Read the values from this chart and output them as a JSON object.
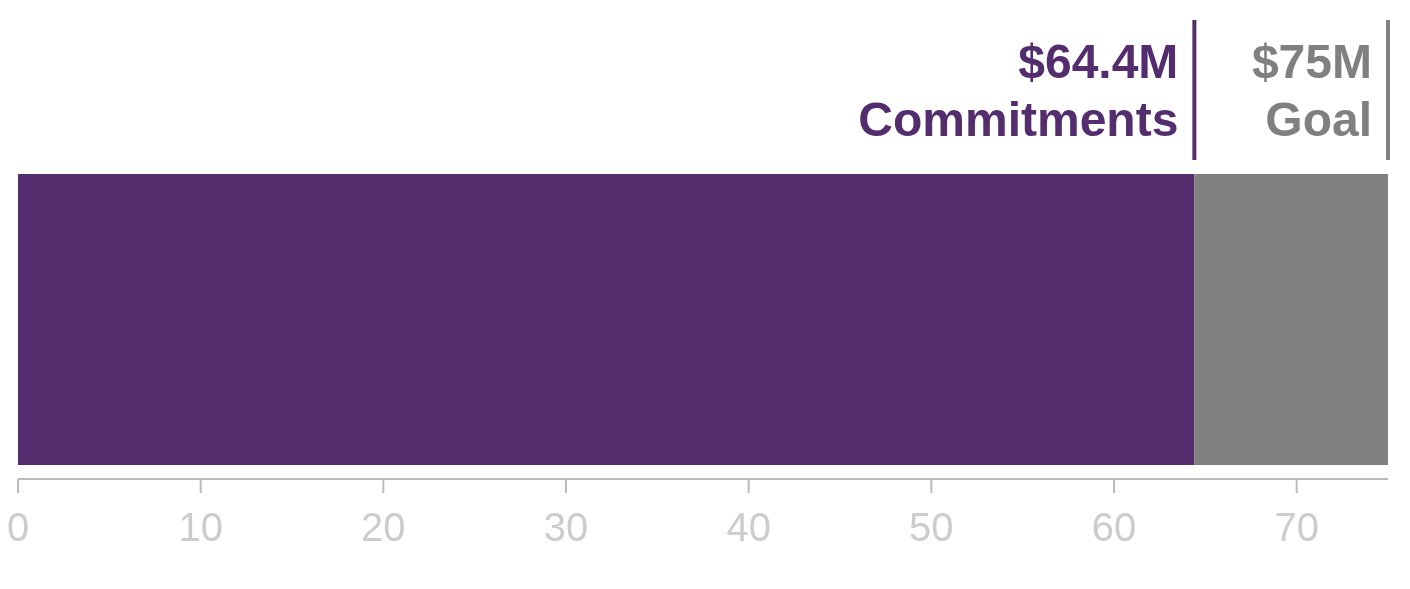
{
  "chart_data": {
    "type": "bar",
    "orientation": "horizontal",
    "stacked": true,
    "categories": [
      null
    ],
    "series": [
      {
        "color": "#532d6d",
        "values": [
          64.4
        ]
      },
      {
        "color": "#808080",
        "values": [
          10.6
        ]
      }
    ],
    "xlim": [
      0,
      75
    ],
    "xticks": [
      0,
      10,
      20,
      30,
      40,
      50,
      60,
      70
    ],
    "grid": false,
    "legend": false,
    "ref_lines": [
      {
        "axis": "x",
        "value": 64.4,
        "label": "$64.4M Commitments",
        "color": "#532d6d"
      },
      {
        "axis": "x",
        "value": 75,
        "label": "$75M Goal",
        "color": "#808080"
      }
    ]
  }
}
